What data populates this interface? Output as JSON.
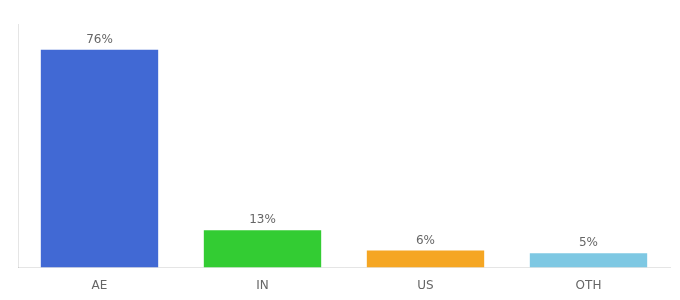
{
  "chart_data": {
    "type": "bar",
    "categories": [
      "AE",
      "IN",
      "US",
      "OTH"
    ],
    "values": [
      76,
      13,
      6,
      5
    ],
    "value_labels": [
      "76%",
      "13%",
      "6%",
      "5%"
    ],
    "data_labels": true,
    "colors": [
      "#4169d4",
      "#33cc33",
      "#f5a623",
      "#7ec8e3"
    ],
    "ylim": [
      0,
      85
    ],
    "tick_labels": "x",
    "grid": false
  }
}
